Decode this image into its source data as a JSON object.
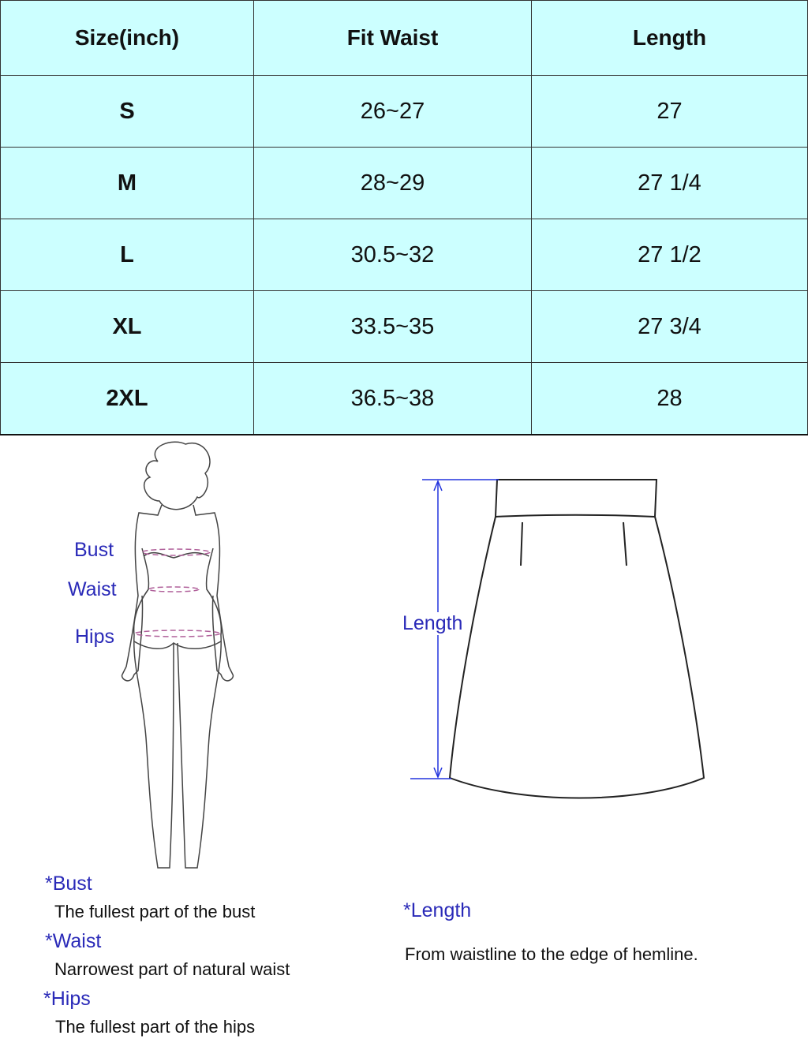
{
  "table": {
    "headers": [
      "Size(inch)",
      "Fit Waist",
      "Length"
    ],
    "rows": [
      [
        "S",
        "26~27",
        "27"
      ],
      [
        "M",
        "28~29",
        "27 1/4"
      ],
      [
        "L",
        "30.5~32",
        "27 1/2"
      ],
      [
        "XL",
        "33.5~35",
        "27 3/4"
      ],
      [
        "2XL",
        "36.5~38",
        "28"
      ]
    ]
  },
  "colors": {
    "table_bg": "#ccffff",
    "label_blue": "#2a2ab8",
    "measure_line": "#b0609a"
  },
  "body_figure": {
    "labels": [
      "Bust",
      "Waist",
      "Hips"
    ]
  },
  "skirt_figure": {
    "label": "Length"
  },
  "notes_left": [
    {
      "title": "*Bust",
      "text": "The fullest part of the bust"
    },
    {
      "title": "*Waist",
      "text": "Narrowest part of natural waist"
    },
    {
      "title": "*Hips",
      "text": "The fullest part of the hips"
    }
  ],
  "notes_right": {
    "title": "*Length",
    "text": "From waistline to the edge of hemline."
  }
}
